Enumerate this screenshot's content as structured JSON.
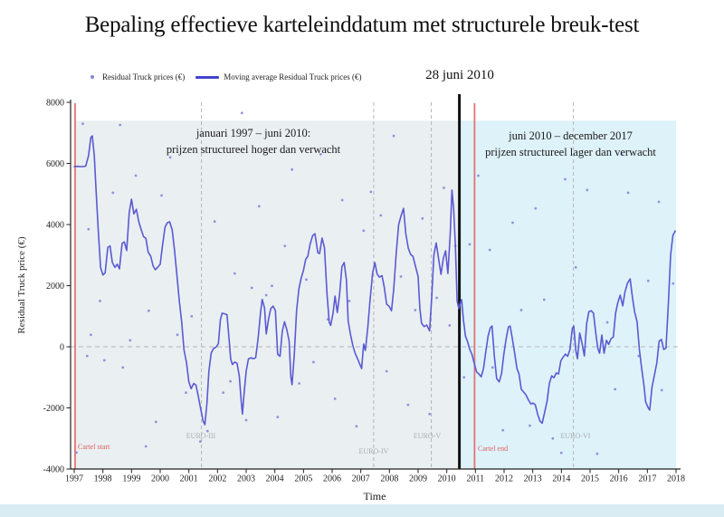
{
  "slide": {
    "title": "Bepaling effectieve karteleinddatum met structurele breuk-test"
  },
  "legend": {
    "residual_label": "Residual Truck prices (€)",
    "moving_avg_label": "Moving average Residual Truck prices (€)"
  },
  "event": {
    "label": "28 juni 2010"
  },
  "annotations": {
    "left_line1": "januari 1997 – juni 2010:",
    "left_line2": "prijzen structureel hoger dan verwacht",
    "right_line1": "juni 2010 – december 2017",
    "right_line2": "prijzen structureel lager dan verwacht",
    "cartel_start": "Cartel start",
    "cartel_end": "Cartel end",
    "euro3": "EURO-III",
    "euro4": "EURO-IV",
    "euro5": "EURO-V",
    "euro6": "EURO-VI"
  },
  "axes": {
    "ylabel": "Residual Truck price (€)",
    "xlabel": "Time"
  },
  "chart_data": {
    "type": "line+scatter",
    "title": "Bepaling effectieve karteleinddatum met structurele breuk-test",
    "xlabel": "Time",
    "ylabel": "Residual Truck price (€)",
    "x_range": [
      1997,
      2018.2
    ],
    "y_range": [
      -4000,
      8000
    ],
    "x_ticks": [
      1997,
      1998,
      1999,
      2000,
      2001,
      2002,
      2003,
      2004,
      2005,
      2006,
      2007,
      2008,
      2009,
      2010,
      2011,
      2012,
      2013,
      2014,
      2015,
      2016,
      2017,
      2018
    ],
    "y_ticks": [
      8000,
      6000,
      4000,
      2000,
      0,
      -2000,
      -4000
    ],
    "legend_position": "top-left",
    "grid": "zero-line-dashed",
    "regions": [
      {
        "x0": 1997.03,
        "x1": 2010.42,
        "top": 7400,
        "bottom": -4000,
        "color": "#eaeff1",
        "meaning": "januari 1997 – juni 2010: prijzen structureel hoger dan verwacht"
      },
      {
        "x0": 2010.49,
        "x1": 2018.0,
        "top": 7400,
        "bottom": -4000,
        "color": "#def2f9",
        "meaning": "juni 2010 – december 2017 prijzen structureel lager dan verwacht"
      }
    ],
    "dashed_vlines": [
      {
        "year": 2001.44,
        "label": "EURO-III"
      },
      {
        "year": 2007.45,
        "label": "EURO-IV"
      },
      {
        "year": 2009.46,
        "label": "EURO-V"
      },
      {
        "year": 2014.42,
        "label": "EURO-VI"
      }
    ],
    "cartel_lines": [
      {
        "year": 1997.03,
        "label": "Cartel start"
      },
      {
        "year": 2010.97,
        "label": "Cartel end"
      }
    ],
    "break_line": {
      "year": 2010.44,
      "label": "28 juni 2010"
    },
    "colors": {
      "line": "#5a5ad2",
      "scatter": "#9191dd",
      "cartel": "#e57373",
      "break_line": "#111111",
      "dash": "#b5b5b5",
      "axis": "#222222"
    },
    "moving_average": [
      [
        1997.0,
        5900
      ],
      [
        1997.1,
        5905
      ],
      [
        1997.2,
        5900
      ],
      [
        1997.3,
        5895
      ],
      [
        1997.4,
        5910
      ],
      [
        1997.5,
        6250
      ],
      [
        1997.58,
        6850
      ],
      [
        1997.63,
        6900
      ],
      [
        1997.7,
        6250
      ],
      [
        1997.76,
        5150
      ],
      [
        1997.84,
        3800
      ],
      [
        1997.92,
        2600
      ],
      [
        1998.0,
        2350
      ],
      [
        1998.08,
        2420
      ],
      [
        1998.17,
        3250
      ],
      [
        1998.25,
        3300
      ],
      [
        1998.33,
        2760
      ],
      [
        1998.42,
        2600
      ],
      [
        1998.5,
        2700
      ],
      [
        1998.58,
        2550
      ],
      [
        1998.67,
        3380
      ],
      [
        1998.75,
        3430
      ],
      [
        1998.83,
        3150
      ],
      [
        1998.92,
        4400
      ],
      [
        1999.0,
        4830
      ],
      [
        1999.08,
        4350
      ],
      [
        1999.17,
        4500
      ],
      [
        1999.25,
        4100
      ],
      [
        1999.33,
        3850
      ],
      [
        1999.42,
        3610
      ],
      [
        1999.5,
        3550
      ],
      [
        1999.58,
        3100
      ],
      [
        1999.67,
        2960
      ],
      [
        1999.75,
        2650
      ],
      [
        1999.83,
        2520
      ],
      [
        1999.92,
        2610
      ],
      [
        2000.0,
        2700
      ],
      [
        2000.08,
        3300
      ],
      [
        2000.17,
        3920
      ],
      [
        2000.25,
        4060
      ],
      [
        2000.33,
        4090
      ],
      [
        2000.42,
        3820
      ],
      [
        2000.5,
        3170
      ],
      [
        2000.58,
        2370
      ],
      [
        2000.67,
        1480
      ],
      [
        2000.75,
        800
      ],
      [
        2000.83,
        -100
      ],
      [
        2000.92,
        -520
      ],
      [
        2001.0,
        -1150
      ],
      [
        2001.08,
        -1370
      ],
      [
        2001.17,
        -1200
      ],
      [
        2001.25,
        -1260
      ],
      [
        2001.33,
        -1620
      ],
      [
        2001.42,
        -2070
      ],
      [
        2001.5,
        -2430
      ],
      [
        2001.56,
        -2550
      ],
      [
        2001.63,
        -1870
      ],
      [
        2001.7,
        -800
      ],
      [
        2001.78,
        -200
      ],
      [
        2001.86,
        -60
      ],
      [
        2001.95,
        -10
      ],
      [
        2002.03,
        100
      ],
      [
        2002.1,
        880
      ],
      [
        2002.16,
        1100
      ],
      [
        2002.25,
        1080
      ],
      [
        2002.33,
        1050
      ],
      [
        2002.4,
        300
      ],
      [
        2002.46,
        -400
      ],
      [
        2002.52,
        -580
      ],
      [
        2002.6,
        -500
      ],
      [
        2002.68,
        -540
      ],
      [
        2002.76,
        -950
      ],
      [
        2002.83,
        -1800
      ],
      [
        2002.87,
        -2200
      ],
      [
        2002.92,
        -1600
      ],
      [
        2003.0,
        -800
      ],
      [
        2003.08,
        -400
      ],
      [
        2003.17,
        -360
      ],
      [
        2003.25,
        -390
      ],
      [
        2003.33,
        -360
      ],
      [
        2003.42,
        300
      ],
      [
        2003.5,
        1100
      ],
      [
        2003.56,
        1550
      ],
      [
        2003.64,
        1270
      ],
      [
        2003.7,
        420
      ],
      [
        2003.78,
        900
      ],
      [
        2003.86,
        1250
      ],
      [
        2003.94,
        1330
      ],
      [
        2004.02,
        1180
      ],
      [
        2004.1,
        -250
      ],
      [
        2004.18,
        -310
      ],
      [
        2004.26,
        500
      ],
      [
        2004.34,
        820
      ],
      [
        2004.42,
        550
      ],
      [
        2004.5,
        180
      ],
      [
        2004.56,
        -1000
      ],
      [
        2004.6,
        -1240
      ],
      [
        2004.68,
        -250
      ],
      [
        2004.76,
        1180
      ],
      [
        2004.84,
        1900
      ],
      [
        2004.92,
        2250
      ],
      [
        2005.0,
        2500
      ],
      [
        2005.08,
        2870
      ],
      [
        2005.15,
        2960
      ],
      [
        2005.23,
        3350
      ],
      [
        2005.32,
        3640
      ],
      [
        2005.4,
        3700
      ],
      [
        2005.5,
        3080
      ],
      [
        2005.56,
        3050
      ],
      [
        2005.65,
        3560
      ],
      [
        2005.73,
        3250
      ],
      [
        2005.82,
        1750
      ],
      [
        2005.9,
        800
      ],
      [
        2005.95,
        700
      ],
      [
        2006.03,
        1100
      ],
      [
        2006.1,
        1660
      ],
      [
        2006.18,
        1120
      ],
      [
        2006.26,
        1700
      ],
      [
        2006.34,
        2620
      ],
      [
        2006.42,
        2760
      ],
      [
        2006.5,
        2180
      ],
      [
        2006.56,
        850
      ],
      [
        2006.64,
        400
      ],
      [
        2006.72,
        50
      ],
      [
        2006.8,
        -200
      ],
      [
        2006.9,
        -420
      ],
      [
        2006.98,
        -600
      ],
      [
        2007.03,
        -710
      ],
      [
        2007.1,
        90
      ],
      [
        2007.16,
        -120
      ],
      [
        2007.24,
        600
      ],
      [
        2007.32,
        1500
      ],
      [
        2007.41,
        2400
      ],
      [
        2007.49,
        2760
      ],
      [
        2007.57,
        2380
      ],
      [
        2007.65,
        2280
      ],
      [
        2007.74,
        2330
      ],
      [
        2007.82,
        1950
      ],
      [
        2007.9,
        1400
      ],
      [
        2007.99,
        1320
      ],
      [
        2008.07,
        1180
      ],
      [
        2008.15,
        1900
      ],
      [
        2008.24,
        3100
      ],
      [
        2008.32,
        4000
      ],
      [
        2008.41,
        4300
      ],
      [
        2008.49,
        4530
      ],
      [
        2008.57,
        3700
      ],
      [
        2008.66,
        3220
      ],
      [
        2008.74,
        3020
      ],
      [
        2008.82,
        2960
      ],
      [
        2008.91,
        2620
      ],
      [
        2009.0,
        2300
      ],
      [
        2009.06,
        1270
      ],
      [
        2009.12,
        770
      ],
      [
        2009.21,
        660
      ],
      [
        2009.3,
        710
      ],
      [
        2009.4,
        520
      ],
      [
        2009.48,
        1700
      ],
      [
        2009.55,
        3000
      ],
      [
        2009.63,
        3400
      ],
      [
        2009.72,
        2850
      ],
      [
        2009.8,
        2370
      ],
      [
        2009.88,
        2900
      ],
      [
        2009.96,
        3140
      ],
      [
        2010.04,
        2400
      ],
      [
        2010.12,
        3700
      ],
      [
        2010.18,
        5130
      ],
      [
        2010.24,
        4500
      ],
      [
        2010.3,
        3300
      ],
      [
        2010.36,
        1500
      ],
      [
        2010.42,
        1250
      ],
      [
        2010.47,
        1420
      ],
      [
        2010.52,
        1540
      ],
      [
        2010.58,
        900
      ],
      [
        2010.65,
        350
      ],
      [
        2010.72,
        180
      ],
      [
        2010.8,
        -80
      ],
      [
        2010.88,
        -250
      ],
      [
        2010.96,
        -550
      ],
      [
        2011.04,
        -820
      ],
      [
        2011.12,
        -890
      ],
      [
        2011.2,
        -980
      ],
      [
        2011.28,
        -720
      ],
      [
        2011.36,
        -180
      ],
      [
        2011.44,
        350
      ],
      [
        2011.52,
        620
      ],
      [
        2011.58,
        680
      ],
      [
        2011.66,
        -300
      ],
      [
        2011.74,
        -1040
      ],
      [
        2011.83,
        -1150
      ],
      [
        2011.91,
        -880
      ],
      [
        2011.99,
        -250
      ],
      [
        2012.07,
        250
      ],
      [
        2012.15,
        650
      ],
      [
        2012.21,
        680
      ],
      [
        2012.29,
        250
      ],
      [
        2012.37,
        -210
      ],
      [
        2012.45,
        -720
      ],
      [
        2012.52,
        -890
      ],
      [
        2012.6,
        -1390
      ],
      [
        2012.68,
        -1480
      ],
      [
        2012.76,
        -1570
      ],
      [
        2012.84,
        -1720
      ],
      [
        2012.93,
        -1870
      ],
      [
        2013.01,
        -1840
      ],
      [
        2013.09,
        -1900
      ],
      [
        2013.17,
        -2210
      ],
      [
        2013.25,
        -2430
      ],
      [
        2013.33,
        -2500
      ],
      [
        2013.42,
        -2120
      ],
      [
        2013.5,
        -1780
      ],
      [
        2013.58,
        -1200
      ],
      [
        2013.66,
        -950
      ],
      [
        2013.74,
        -1010
      ],
      [
        2013.82,
        -860
      ],
      [
        2013.9,
        -890
      ],
      [
        2013.98,
        -460
      ],
      [
        2014.06,
        -340
      ],
      [
        2014.14,
        -240
      ],
      [
        2014.22,
        -310
      ],
      [
        2014.3,
        -90
      ],
      [
        2014.38,
        600
      ],
      [
        2014.43,
        680
      ],
      [
        2014.5,
        -110
      ],
      [
        2014.56,
        -390
      ],
      [
        2014.64,
        450
      ],
      [
        2014.72,
        120
      ],
      [
        2014.8,
        -300
      ],
      [
        2014.88,
        750
      ],
      [
        2014.96,
        1150
      ],
      [
        2015.04,
        1180
      ],
      [
        2015.12,
        1100
      ],
      [
        2015.2,
        450
      ],
      [
        2015.27,
        -60
      ],
      [
        2015.33,
        -210
      ],
      [
        2015.41,
        385
      ],
      [
        2015.49,
        -210
      ],
      [
        2015.57,
        210
      ],
      [
        2015.65,
        80
      ],
      [
        2015.73,
        260
      ],
      [
        2015.81,
        320
      ],
      [
        2015.89,
        1100
      ],
      [
        2015.97,
        1450
      ],
      [
        2016.05,
        1690
      ],
      [
        2016.14,
        1340
      ],
      [
        2016.22,
        1800
      ],
      [
        2016.3,
        2070
      ],
      [
        2016.4,
        2220
      ],
      [
        2016.48,
        1600
      ],
      [
        2016.56,
        1120
      ],
      [
        2016.64,
        830
      ],
      [
        2016.72,
        -90
      ],
      [
        2016.8,
        -700
      ],
      [
        2016.88,
        -1250
      ],
      [
        2016.94,
        -1800
      ],
      [
        2017.02,
        -1980
      ],
      [
        2017.08,
        -2070
      ],
      [
        2017.16,
        -1330
      ],
      [
        2017.25,
        -900
      ],
      [
        2017.33,
        -520
      ],
      [
        2017.41,
        180
      ],
      [
        2017.49,
        240
      ],
      [
        2017.57,
        -90
      ],
      [
        2017.65,
        -40
      ],
      [
        2017.73,
        1400
      ],
      [
        2017.81,
        3000
      ],
      [
        2017.89,
        3640
      ],
      [
        2017.97,
        3790
      ]
    ],
    "scatter": [
      [
        1997.08,
        -3460
      ],
      [
        1997.3,
        7300
      ],
      [
        1997.45,
        -300
      ],
      [
        1997.5,
        3850
      ],
      [
        1997.58,
        390
      ],
      [
        1997.9,
        1500
      ],
      [
        1998.05,
        -440
      ],
      [
        1998.35,
        5040
      ],
      [
        1998.6,
        7260
      ],
      [
        1998.7,
        -680
      ],
      [
        1998.95,
        210
      ],
      [
        1999.15,
        5600
      ],
      [
        1999.5,
        -3260
      ],
      [
        1999.6,
        1180
      ],
      [
        1999.85,
        -2460
      ],
      [
        2000.05,
        4950
      ],
      [
        2000.35,
        6200
      ],
      [
        2000.6,
        390
      ],
      [
        2000.9,
        -1500
      ],
      [
        2001.1,
        1000
      ],
      [
        2001.4,
        -3100
      ],
      [
        2001.65,
        -2760
      ],
      [
        2001.9,
        4100
      ],
      [
        2002.2,
        -1500
      ],
      [
        2002.45,
        -1130
      ],
      [
        2002.6,
        2400
      ],
      [
        2002.85,
        7650
      ],
      [
        2003.0,
        -2400
      ],
      [
        2003.2,
        1930
      ],
      [
        2003.45,
        4600
      ],
      [
        2003.7,
        1690
      ],
      [
        2003.9,
        1990
      ],
      [
        2004.1,
        -2300
      ],
      [
        2004.35,
        3300
      ],
      [
        2004.6,
        5800
      ],
      [
        2004.85,
        -1200
      ],
      [
        2005.1,
        2200
      ],
      [
        2005.35,
        -500
      ],
      [
        2005.6,
        6300
      ],
      [
        2005.85,
        900
      ],
      [
        2006.1,
        -1700
      ],
      [
        2006.35,
        4800
      ],
      [
        2006.6,
        1500
      ],
      [
        2006.85,
        -2600
      ],
      [
        2007.1,
        3800
      ],
      [
        2007.35,
        5070
      ],
      [
        2007.7,
        4300
      ],
      [
        2007.9,
        -800
      ],
      [
        2008.15,
        6900
      ],
      [
        2008.4,
        2300
      ],
      [
        2008.65,
        -1900
      ],
      [
        2008.9,
        1200
      ],
      [
        2009.15,
        4200
      ],
      [
        2009.4,
        -2200
      ],
      [
        2009.65,
        1600
      ],
      [
        2009.9,
        5200
      ],
      [
        2010.1,
        700
      ],
      [
        2010.3,
        3300
      ],
      [
        2010.6,
        -1000
      ],
      [
        2010.8,
        3350
      ],
      [
        2011.1,
        5600
      ],
      [
        2011.5,
        3170
      ],
      [
        2011.6,
        -680
      ],
      [
        2011.96,
        -2730
      ],
      [
        2012.3,
        4060
      ],
      [
        2012.6,
        1200
      ],
      [
        2012.9,
        -2580
      ],
      [
        2013.1,
        4530
      ],
      [
        2013.4,
        1540
      ],
      [
        2013.7,
        -3000
      ],
      [
        2014.0,
        -3470
      ],
      [
        2014.13,
        5480
      ],
      [
        2014.5,
        2600
      ],
      [
        2014.9,
        5130
      ],
      [
        2015.25,
        -3500
      ],
      [
        2015.6,
        800
      ],
      [
        2015.87,
        -1390
      ],
      [
        2016.1,
        6300
      ],
      [
        2016.33,
        5040
      ],
      [
        2016.7,
        -300
      ],
      [
        2017.03,
        2160
      ],
      [
        2017.4,
        4740
      ],
      [
        2017.5,
        -1420
      ],
      [
        2017.9,
        2070
      ]
    ]
  }
}
